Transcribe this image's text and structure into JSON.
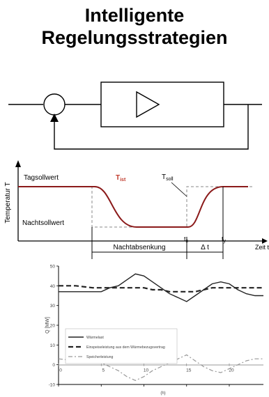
{
  "title": {
    "line1": "Intelligente",
    "line2": "Regelungsstrategien"
  },
  "temp_diagram": {
    "ylabel": "Temperatur T",
    "tag_label": "Tagsollwert",
    "nacht_label": "Nachtsollwert",
    "t_ist": "T",
    "t_ist_sub": "ist",
    "t_soll": "T",
    "t_soll_sub": "soll",
    "tx": "t",
    "tx_sub": "x",
    "ty": "t",
    "ty_sub": "y",
    "nacht_absenkung": "Nachtabsenkung",
    "delta_t": "Δ t",
    "zeit": "Zeit t",
    "colors": {
      "ist_curve": "#8b1a1a",
      "t_ist_label": "#c0392b"
    }
  },
  "chart_data": {
    "type": "line",
    "ylabel": "Q [MW]",
    "xlabel": "(h)",
    "xlim": [
      0,
      24
    ],
    "ylim": [
      -10,
      50
    ],
    "x_ticks": [
      "0",
      "5",
      "10",
      "15",
      "20"
    ],
    "y_ticks": [
      "50",
      "40",
      "30",
      "20",
      "10",
      "0",
      "-10"
    ],
    "legend": [
      "Wärmelast",
      "Einspeiseleistung aus dem Wärmebezugsvertrag",
      "Speicherleistung"
    ],
    "series": [
      {
        "name": "Wärmelast",
        "style": "solid",
        "x": [
          0,
          2,
          4,
          5,
          6,
          7,
          8,
          9,
          10,
          11,
          12,
          13,
          14,
          15,
          16,
          17,
          18,
          19,
          20,
          21,
          22,
          23,
          24
        ],
        "y": [
          37,
          37,
          37,
          37,
          39,
          40,
          43,
          46,
          45,
          42,
          39,
          36,
          34,
          32,
          35,
          38,
          41,
          42,
          41,
          38,
          36,
          35,
          35
        ]
      },
      {
        "name": "Einspeiseleistung aus dem Wärmebezugsvertrag",
        "style": "dashed",
        "x": [
          0,
          2,
          4,
          5,
          6,
          7,
          8,
          9,
          10,
          11,
          12,
          13,
          14,
          15,
          16,
          17,
          18,
          19,
          20,
          21,
          22,
          23,
          24
        ],
        "y": [
          40,
          40,
          39,
          39,
          39,
          39,
          39,
          39,
          39,
          38,
          38,
          37,
          37,
          37,
          37,
          38,
          39,
          39,
          39,
          39,
          39,
          39,
          39
        ]
      },
      {
        "name": "Speicherleistung",
        "style": "dashdot",
        "x": [
          0,
          2,
          4,
          5,
          6,
          7,
          8,
          9,
          10,
          11,
          12,
          13,
          14,
          15,
          16,
          17,
          18,
          19,
          20,
          21,
          22,
          23,
          24
        ],
        "y": [
          3,
          2,
          1,
          1,
          -1,
          -3,
          -6,
          -8,
          -6,
          -3,
          -1,
          1,
          3,
          5,
          2,
          -1,
          -3,
          -4,
          -2,
          0,
          2,
          3,
          3
        ]
      }
    ]
  }
}
